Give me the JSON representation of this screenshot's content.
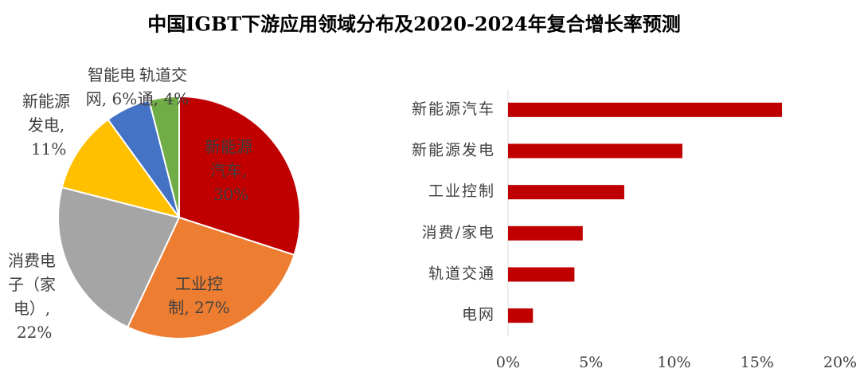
{
  "title": "中国IGBT下游应用领域分布及2020-2024年复合增长率预测",
  "chart_data": [
    {
      "type": "pie",
      "values": [
        30,
        27,
        22,
        11,
        6,
        4
      ],
      "value_labels": [
        "新能源汽车, 30%",
        "工业控制, 27%",
        "消费电子（家电）, 22%",
        "新能源发电, 11%",
        "智能电网, 6%",
        "轨道交通, 4%"
      ],
      "colors": [
        "#c00000",
        "#ed7d31",
        "#a5a5a5",
        "#ffc000",
        "#4472c4",
        "#70ad47"
      ]
    },
    {
      "type": "hbar",
      "categories": [
        "新能源汽车",
        "新能源发电",
        "工业控制",
        "消费/家电",
        "轨道交通",
        "电网"
      ],
      "values": [
        16.5,
        10.5,
        7,
        4.5,
        4,
        1.5
      ],
      "color": "#c00000",
      "xlim": [
        0,
        20
      ],
      "xticks": [
        {
          "value": 0,
          "label": "0%"
        },
        {
          "value": 5,
          "label": "5%"
        },
        {
          "value": 10,
          "label": "10%"
        },
        {
          "value": 15,
          "label": "15%"
        },
        {
          "value": 20,
          "label": "20%"
        }
      ],
      "grid": false
    }
  ]
}
